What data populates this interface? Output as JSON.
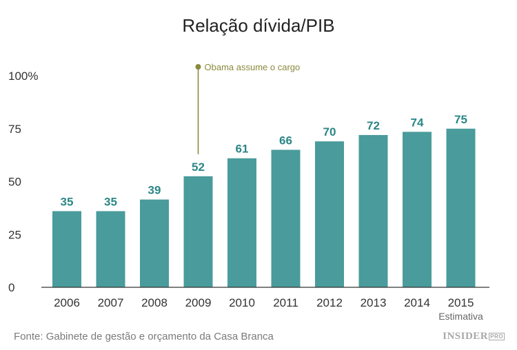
{
  "chart_data": {
    "type": "bar",
    "title": "Relação dívida/PIB",
    "categories": [
      "2006",
      "2007",
      "2008",
      "2009",
      "2010",
      "2011",
      "2012",
      "2013",
      "2014",
      "2015"
    ],
    "values": [
      35,
      35,
      39,
      52,
      61,
      66,
      70,
      72,
      74,
      75
    ],
    "bar_heights_approx": [
      36,
      36,
      41.5,
      52.5,
      61,
      65,
      69,
      72,
      73.5,
      75
    ],
    "ylim": [
      0,
      100
    ],
    "yticks": [
      "0",
      "25",
      "50",
      "75",
      "100%"
    ],
    "xlabel": "",
    "ylabel": "",
    "grid": false,
    "legend": "none",
    "bar_color": "#4a9b9b",
    "label_color": "#2b8686",
    "annotation": {
      "text": "Obama assume o cargo",
      "category": "2009",
      "color": "#8a8a3c"
    },
    "category_note": {
      "category": "2015",
      "text": "Estimativa"
    }
  },
  "footer": {
    "source": "Fonte: Gabinete de gestão e orçamento da Casa Branca",
    "brand": "INSIDER",
    "brand_suffix": "PRO"
  }
}
